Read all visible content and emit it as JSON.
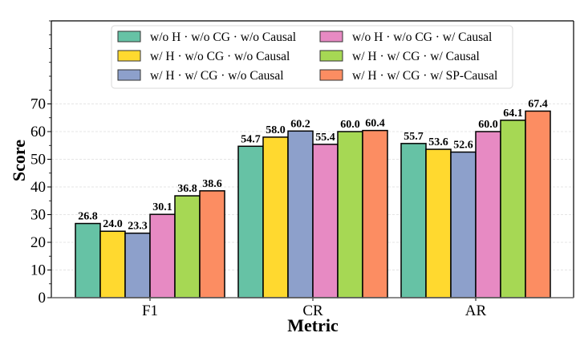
{
  "chart_data": {
    "type": "bar",
    "title": "",
    "xlabel": "Metric",
    "ylabel": "Score",
    "ylim": [
      0,
      100
    ],
    "yticks": [
      0,
      10,
      20,
      30,
      40,
      50,
      60,
      70
    ],
    "yticks_minor_step": 5,
    "grid": true,
    "legend_position": "top-center",
    "legend_columns": 2,
    "categories": [
      "F1",
      "CR",
      "AR"
    ],
    "series": [
      {
        "name": "w/o H · w/o CG · w/o Causal",
        "color": "#66c2a5",
        "values": [
          26.8,
          54.7,
          55.7
        ]
      },
      {
        "name": "w/ H · w/o CG · w/o Causal",
        "color": "#ffd92f",
        "values": [
          24.0,
          58.0,
          53.6
        ]
      },
      {
        "name": "w/ H · w/ CG · w/o Causal",
        "color": "#8da0cb",
        "values": [
          23.3,
          60.2,
          52.6
        ]
      },
      {
        "name": "w/o H · w/o CG · w/ Causal",
        "color": "#e78ac3",
        "values": [
          30.1,
          55.4,
          60.0
        ]
      },
      {
        "name": "w/ H · w/ CG · w/ Causal",
        "color": "#a6d854",
        "values": [
          36.8,
          60.0,
          64.1
        ]
      },
      {
        "name": "w/ H · w/ CG · w/ SP-Causal",
        "color": "#fc8d62",
        "values": [
          38.6,
          60.4,
          67.4
        ]
      }
    ],
    "data_labels": [
      [
        "26.8",
        "54.7",
        "55.7"
      ],
      [
        "24.0",
        "58.0",
        "53.6"
      ],
      [
        "23.3",
        "60.2",
        "52.6"
      ],
      [
        "30.1",
        "55.4",
        "60.0"
      ],
      [
        "36.8",
        "60.0",
        "64.1"
      ],
      [
        "38.6",
        "60.4",
        "67.4"
      ]
    ]
  }
}
